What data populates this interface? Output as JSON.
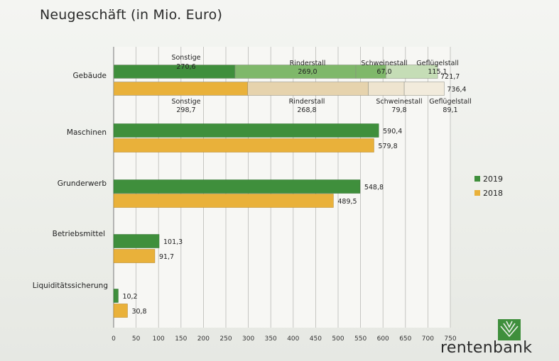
{
  "title": "Neugeschäft (in Mio. Euro)",
  "brand": "rentenbank",
  "legend": [
    {
      "name": "2019",
      "color": "#3f8f3c"
    },
    {
      "name": "2018",
      "color": "#e9b13a"
    }
  ],
  "colors": {
    "green": "#3f8f3c",
    "green_light": "#7fb86a",
    "orange": "#e9b13a",
    "beige": "#e6d3ad",
    "beige_light": "#eee4cf"
  },
  "chart_data": {
    "type": "bar",
    "orientation": "horizontal",
    "title": "Neugeschäft (in Mio. Euro)",
    "xlim": [
      0,
      750
    ],
    "x_ticks": [
      "0",
      "50",
      "100",
      "150",
      "200",
      "250",
      "300",
      "350",
      "400",
      "450",
      "500",
      "550",
      "600",
      "650",
      "700",
      "750"
    ],
    "categories": [
      "Gebäude",
      "Maschinen",
      "Grunderwerb",
      "Betriebsmittel",
      "Liquiditätssicherung"
    ],
    "series": [
      {
        "name": "2019",
        "values": [
          721.7,
          590.4,
          548.8,
          101.3,
          10.2
        ],
        "labels": [
          "721,7",
          "590,4",
          "548,8",
          "101,3",
          "10,2"
        ]
      },
      {
        "name": "2018",
        "values": [
          736.4,
          579.8,
          489.5,
          91.7,
          30.8
        ],
        "labels": [
          "736,4",
          "579,8",
          "489,5",
          "91,7",
          "30,8"
        ]
      }
    ],
    "stacked_breakdown": {
      "category": "Gebäude",
      "segments": [
        "Sonstige",
        "Rinderstall",
        "Schweinestall",
        "Geflügelstall"
      ],
      "2019": {
        "values": [
          270.6,
          269.0,
          67.0,
          115.1
        ],
        "labels": [
          "270,6",
          "269,0",
          "67,0",
          "115,1"
        ]
      },
      "2018": {
        "values": [
          298.7,
          268.8,
          79.8,
          89.1
        ],
        "labels": [
          "298,7",
          "268,8",
          "79,8",
          "89,1"
        ]
      }
    },
    "grid": true,
    "legend_position": "right"
  }
}
